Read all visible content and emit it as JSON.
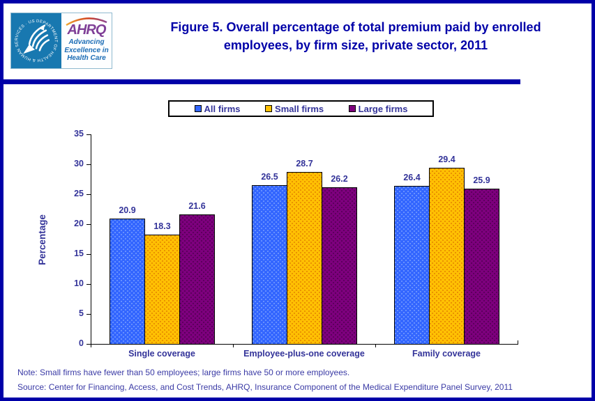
{
  "theme": {
    "navy": "#0000A8",
    "chart_text_blue": "#333399",
    "footer_text_blue": "#3A3AA5",
    "hhs_blue": "#1878B0",
    "ahrq_purple": "#7F3F97",
    "tagline_blue": "#1B6CB5"
  },
  "header": {
    "title_line1": "Figure 5. Overall percentage of total premium paid by enrolled",
    "title_line2": "employees, by firm size, private sector, 2011",
    "logo": {
      "seal_text": "DEPARTMENT OF HEALTH & HUMAN SERVICES · USA",
      "ahrq_acronym": "AHRQ",
      "ahrq_tagline": "Advancing\nExcellence in\nHealth Care"
    }
  },
  "chart_data": {
    "type": "bar",
    "title": "Figure 5. Overall percentage of total premium paid by enrolled employees, by firm size, private sector, 2011",
    "categories": [
      "Single coverage",
      "Employee-plus-one coverage",
      "Family coverage"
    ],
    "series": [
      {
        "name": "All firms",
        "color": "#3366FF",
        "dot_color": "#6B93FF",
        "values": [
          20.9,
          26.5,
          26.4
        ]
      },
      {
        "name": "Small firms",
        "color": "#FFC003",
        "dot_color": "#E88E00",
        "values": [
          18.3,
          28.7,
          29.4
        ]
      },
      {
        "name": "Large firms",
        "color": "#7D007D",
        "dot_color": "#590059",
        "values": [
          21.6,
          26.2,
          25.9
        ]
      }
    ],
    "xlabel": "",
    "ylabel": "Percentage",
    "ylim": [
      0,
      35
    ],
    "yticks": [
      0,
      5,
      10,
      15,
      20,
      25,
      30,
      35
    ],
    "legend_position": "top",
    "grid": false,
    "value_labels": true
  },
  "footer": {
    "note": "Note: Small firms have fewer than 50 employees; large firms have 50 or more employees.",
    "source": "Source: Center for Financing, Access, and Cost Trends, AHRQ, Insurance Component of the Medical Expenditure Panel Survey, 2011"
  }
}
